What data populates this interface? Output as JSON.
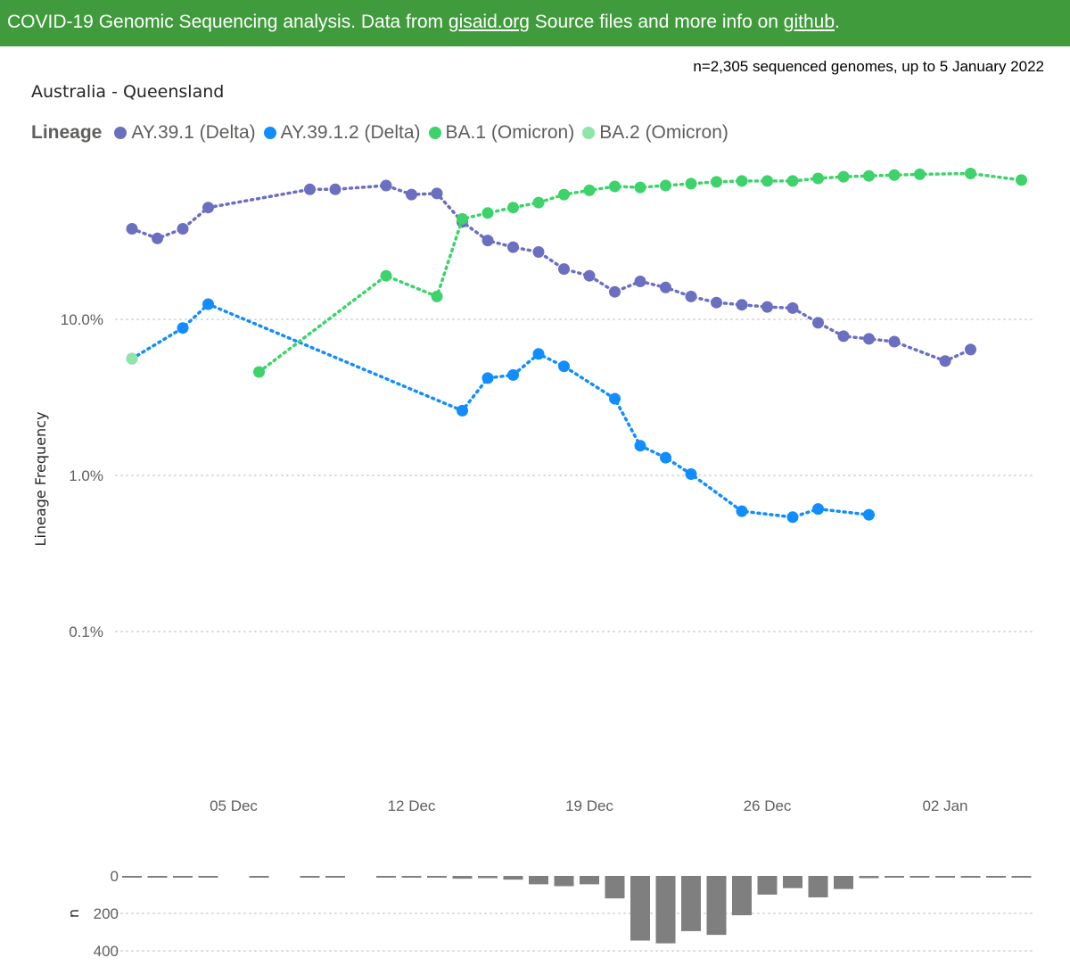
{
  "banner": {
    "text1": "COVID-19 Genomic Sequencing analysis. Data from ",
    "link1": "gisaid.org",
    "text2": " Source files and more info on ",
    "link2": "github",
    "text3": "."
  },
  "subtitle": "n=2,305 sequenced genomes, up to 5 January 2022",
  "chart_title": "Australia - Queensland",
  "legend_title": "Lineage",
  "chart_data": [
    {
      "type": "line",
      "title": "Australia - Queensland",
      "ylabel": "Lineage Frequency",
      "yscale": "log",
      "ylim": [
        0.0001,
        1
      ],
      "xlim": [
        "2021-11-30",
        "2022-01-06"
      ],
      "grid": true,
      "legend_position": "top-left",
      "ytick_labels": [
        {
          "value": 0.1,
          "label": "10.0%"
        },
        {
          "value": 0.01,
          "label": "1.0%"
        },
        {
          "value": 0.001,
          "label": "0.1%"
        }
      ],
      "xtick_labels": [
        {
          "date": "2021-12-05",
          "label": "05 Dec"
        },
        {
          "date": "2021-12-12",
          "label": "12 Dec"
        },
        {
          "date": "2021-12-19",
          "label": "19 Dec"
        },
        {
          "date": "2021-12-26",
          "label": "26 Dec"
        },
        {
          "date": "2022-01-02",
          "label": "02 Jan"
        }
      ],
      "series": [
        {
          "name": "AY.39.1 (Delta)",
          "color": "#6b6fbf",
          "points": [
            [
              "2021-12-01",
              0.38
            ],
            [
              "2021-12-02",
              0.33
            ],
            [
              "2021-12-03",
              0.38
            ],
            [
              "2021-12-04",
              0.52
            ],
            [
              "2021-12-08",
              0.68
            ],
            [
              "2021-12-09",
              0.68
            ],
            [
              "2021-12-11",
              0.72
            ],
            [
              "2021-12-12",
              0.63
            ],
            [
              "2021-12-13",
              0.64
            ],
            [
              "2021-12-14",
              0.42
            ],
            [
              "2021-12-15",
              0.32
            ],
            [
              "2021-12-16",
              0.29
            ],
            [
              "2021-12-17",
              0.27
            ],
            [
              "2021-12-18",
              0.21
            ],
            [
              "2021-12-19",
              0.19
            ],
            [
              "2021-12-20",
              0.15
            ],
            [
              "2021-12-21",
              0.175
            ],
            [
              "2021-12-22",
              0.16
            ],
            [
              "2021-12-23",
              0.14
            ],
            [
              "2021-12-24",
              0.128
            ],
            [
              "2021-12-25",
              0.124
            ],
            [
              "2021-12-26",
              0.12
            ],
            [
              "2021-12-27",
              0.118
            ],
            [
              "2021-12-28",
              0.095
            ],
            [
              "2021-12-29",
              0.078
            ],
            [
              "2021-12-30",
              0.075
            ],
            [
              "2021-12-31",
              0.072
            ],
            [
              "2022-01-02",
              0.054
            ],
            [
              "2022-01-03",
              0.064
            ]
          ]
        },
        {
          "name": "AY.39.1.2 (Delta)",
          "color": "#118dff",
          "points": [
            [
              "2021-12-01",
              0.056
            ],
            [
              "2021-12-03",
              0.088
            ],
            [
              "2021-12-04",
              0.125
            ],
            [
              "2021-12-14",
              0.026
            ],
            [
              "2021-12-15",
              0.042
            ],
            [
              "2021-12-16",
              0.044
            ],
            [
              "2021-12-17",
              0.06
            ],
            [
              "2021-12-18",
              0.05
            ],
            [
              "2021-12-20",
              0.031
            ],
            [
              "2021-12-21",
              0.0155
            ],
            [
              "2021-12-22",
              0.013
            ],
            [
              "2021-12-23",
              0.0102
            ],
            [
              "2021-12-25",
              0.0059
            ],
            [
              "2021-12-27",
              0.0054
            ],
            [
              "2021-12-28",
              0.0061
            ],
            [
              "2021-12-30",
              0.0056
            ]
          ]
        },
        {
          "name": "BA.1 (Omicron)",
          "color": "#3dd36a",
          "points": [
            [
              "2021-12-06",
              0.046
            ],
            [
              "2021-12-11",
              0.19
            ],
            [
              "2021-12-13",
              0.14
            ],
            [
              "2021-12-14",
              0.44
            ],
            [
              "2021-12-15",
              0.48
            ],
            [
              "2021-12-16",
              0.52
            ],
            [
              "2021-12-17",
              0.56
            ],
            [
              "2021-12-18",
              0.63
            ],
            [
              "2021-12-19",
              0.67
            ],
            [
              "2021-12-20",
              0.71
            ],
            [
              "2021-12-21",
              0.7
            ],
            [
              "2021-12-22",
              0.72
            ],
            [
              "2021-12-23",
              0.74
            ],
            [
              "2021-12-24",
              0.76
            ],
            [
              "2021-12-25",
              0.77
            ],
            [
              "2021-12-26",
              0.77
            ],
            [
              "2021-12-27",
              0.77
            ],
            [
              "2021-12-28",
              0.8
            ],
            [
              "2021-12-29",
              0.82
            ],
            [
              "2021-12-30",
              0.83
            ],
            [
              "2021-12-31",
              0.84
            ],
            [
              "2022-01-01",
              0.85
            ],
            [
              "2022-01-03",
              0.86
            ],
            [
              "2022-01-05",
              0.78
            ]
          ]
        },
        {
          "name": "BA.2 (Omicron)",
          "color": "#8fe6a8",
          "points": [
            [
              "2021-12-01",
              0.056
            ]
          ]
        }
      ]
    },
    {
      "type": "bar",
      "ylabel": "n",
      "ylim": [
        0,
        400
      ],
      "inverted": true,
      "grid": true,
      "color": "#7f7f7f",
      "ytick_labels": [
        {
          "value": 0,
          "label": "0"
        },
        {
          "value": 200,
          "label": "200"
        },
        {
          "value": 400,
          "label": "400"
        }
      ],
      "bars": [
        [
          "2021-12-01",
          3
        ],
        [
          "2021-12-02",
          2
        ],
        [
          "2021-12-03",
          3
        ],
        [
          "2021-12-04",
          4
        ],
        [
          "2021-12-06",
          2
        ],
        [
          "2021-12-08",
          2
        ],
        [
          "2021-12-09",
          2
        ],
        [
          "2021-12-11",
          3
        ],
        [
          "2021-12-12",
          3
        ],
        [
          "2021-12-13",
          3
        ],
        [
          "2021-12-14",
          15
        ],
        [
          "2021-12-15",
          12
        ],
        [
          "2021-12-16",
          20
        ],
        [
          "2021-12-17",
          45
        ],
        [
          "2021-12-18",
          55
        ],
        [
          "2021-12-19",
          45
        ],
        [
          "2021-12-20",
          120
        ],
        [
          "2021-12-21",
          345
        ],
        [
          "2021-12-22",
          360
        ],
        [
          "2021-12-23",
          295
        ],
        [
          "2021-12-24",
          315
        ],
        [
          "2021-12-25",
          210
        ],
        [
          "2021-12-26",
          100
        ],
        [
          "2021-12-27",
          65
        ],
        [
          "2021-12-28",
          115
        ],
        [
          "2021-12-29",
          70
        ],
        [
          "2021-12-30",
          12
        ],
        [
          "2021-12-31",
          6
        ],
        [
          "2022-01-01",
          5
        ],
        [
          "2022-01-02",
          5
        ],
        [
          "2022-01-03",
          4
        ],
        [
          "2022-01-04",
          4
        ],
        [
          "2022-01-05",
          4
        ]
      ]
    }
  ]
}
